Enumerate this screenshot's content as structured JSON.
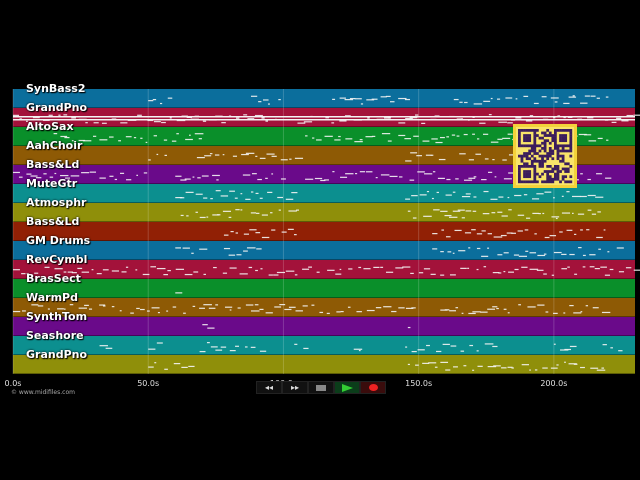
{
  "tracks": [
    {
      "name": "SynBass2",
      "color": "#0b6e9c"
    },
    {
      "name": "GrandPno",
      "color": "#a3123a"
    },
    {
      "name": "AltoSax",
      "color": "#0a8f2a"
    },
    {
      "name": "AahChoir",
      "color": "#8e5a05"
    },
    {
      "name": "Bass&Ld",
      "color": "#6a0a8a"
    },
    {
      "name": "MuteGtr",
      "color": "#0c8f8f"
    },
    {
      "name": "Atmosphr",
      "color": "#8f8f0a"
    },
    {
      "name": "Bass&Ld",
      "color": "#912005"
    },
    {
      "name": "GM Drums",
      "color": "#0b6e9c"
    },
    {
      "name": "RevCymbl",
      "color": "#a3123a"
    },
    {
      "name": "BrasSect",
      "color": "#0a8f2a"
    },
    {
      "name": "WarmPd",
      "color": "#8e5a05"
    },
    {
      "name": "SynthTom",
      "color": "#6a0a8a"
    },
    {
      "name": "Seashore",
      "color": "#0c8f8f"
    },
    {
      "name": "GrandPno",
      "color": "#8f8f0a"
    }
  ],
  "timeline": {
    "ticks": [
      "0.0s",
      "50.0s",
      "100.0s",
      "150.0s",
      "200.0s"
    ],
    "tick_seconds": [
      0,
      50,
      100,
      150,
      200
    ],
    "total_seconds": 230
  },
  "footer": {
    "credit": "© www.midifiles.com"
  },
  "transport": {
    "rewind": "◂◂",
    "fast_forward": "▸▸"
  },
  "colors": {
    "background": "#000000",
    "note": "#f4f4f4",
    "qr_frame": "#f3d23a"
  }
}
